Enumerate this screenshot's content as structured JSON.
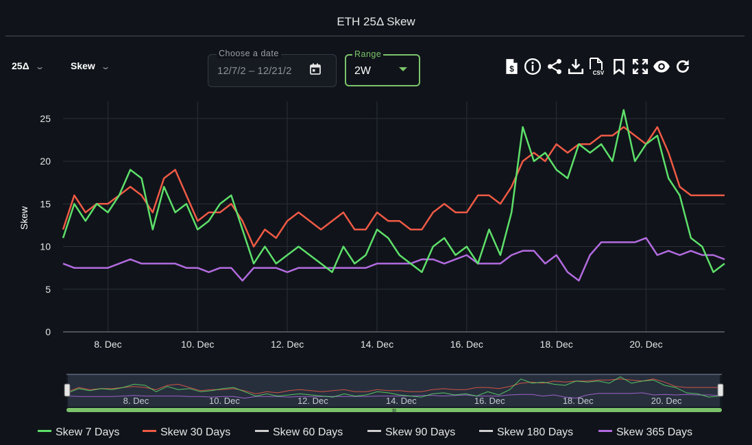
{
  "title": "ETH 25Δ Skew",
  "controls": {
    "delta_select": "25Δ",
    "metric_select": "Skew",
    "date_label": "Choose a date",
    "date_value": "12/7/2  –  12/21/2",
    "range_label": "Range",
    "range_value": "2W"
  },
  "toolbar": [
    {
      "name": "dollar-file-icon"
    },
    {
      "name": "info-icon"
    },
    {
      "name": "share-icon"
    },
    {
      "name": "download-icon"
    },
    {
      "name": "csv-icon",
      "label": "CSV"
    },
    {
      "name": "bookmark-icon"
    },
    {
      "name": "fullscreen-icon"
    },
    {
      "name": "eye-icon"
    },
    {
      "name": "refresh-icon"
    }
  ],
  "colors": {
    "background": "#10141a",
    "grid": "#2a3038",
    "accent": "#7cc46b",
    "skew_7": "#5ee06a",
    "skew_30": "#f05a45",
    "skew_60": "#d0d0d0",
    "skew_90": "#d0d0d0",
    "skew_180": "#d0d0d0",
    "skew_365": "#b36be0"
  },
  "chart_data": {
    "type": "line",
    "title": "ETH 25Δ Skew",
    "xlabel": "",
    "ylabel": "Skew",
    "x_range": [
      "Dec 7, 00:00",
      "Dec 21, 18:00"
    ],
    "x_start_day": 7,
    "x_end_day": 21.75,
    "x_ticks": [
      "8. Dec",
      "10. Dec",
      "12. Dec",
      "14. Dec",
      "16. Dec",
      "18. Dec",
      "20. Dec"
    ],
    "x_tick_days": [
      8,
      10,
      12,
      14,
      16,
      18,
      20
    ],
    "ylim": [
      0,
      27
    ],
    "y_ticks": [
      0,
      5,
      10,
      15,
      20,
      25
    ],
    "grid": true,
    "legend_position": "bottom",
    "x_days": [
      7.0,
      7.25,
      7.5,
      7.75,
      8.0,
      8.25,
      8.5,
      8.75,
      9.0,
      9.25,
      9.5,
      9.75,
      10.0,
      10.25,
      10.5,
      10.75,
      11.0,
      11.25,
      11.5,
      11.75,
      12.0,
      12.25,
      12.5,
      12.75,
      13.0,
      13.25,
      13.5,
      13.75,
      14.0,
      14.25,
      14.5,
      14.75,
      15.0,
      15.25,
      15.5,
      15.75,
      16.0,
      16.25,
      16.5,
      16.75,
      17.0,
      17.25,
      17.5,
      17.75,
      18.0,
      18.25,
      18.5,
      18.75,
      19.0,
      19.25,
      19.5,
      19.75,
      20.0,
      20.25,
      20.5,
      20.75,
      21.0,
      21.25,
      21.5,
      21.75
    ],
    "series": [
      {
        "name": "Skew 7 Days",
        "color": "#5ee06a",
        "visible": true,
        "values": [
          11,
          15,
          13,
          15,
          14,
          16,
          19,
          18,
          12,
          17,
          14,
          15,
          12,
          13,
          15,
          16,
          12,
          8,
          10,
          8,
          9,
          10,
          9,
          8,
          7,
          10,
          8,
          9,
          12,
          11,
          9,
          8,
          7,
          10,
          11,
          9,
          10,
          8,
          12,
          9,
          14,
          24,
          20,
          21,
          19,
          18,
          22,
          21,
          22,
          20,
          26,
          20,
          22,
          23,
          18,
          16,
          11,
          10,
          7,
          8
        ]
      },
      {
        "name": "Skew 30 Days",
        "color": "#f05a45",
        "visible": true,
        "values": [
          12,
          16,
          14,
          15,
          15,
          16,
          17,
          16,
          14,
          18,
          19,
          16,
          13,
          14,
          14,
          15,
          13,
          10,
          12,
          11,
          13,
          14,
          13,
          12,
          13,
          14,
          12,
          12,
          14,
          13,
          13,
          12,
          12,
          14,
          15,
          14,
          14,
          16,
          16,
          15,
          17,
          20,
          21,
          20,
          22,
          21,
          22,
          22,
          23,
          23,
          24,
          23,
          22,
          24,
          21,
          17,
          16,
          16,
          16,
          16
        ]
      },
      {
        "name": "Skew 60 Days",
        "color": "#d0d0d0",
        "visible": false,
        "values": []
      },
      {
        "name": "Skew 90 Days",
        "color": "#d0d0d0",
        "visible": false,
        "values": []
      },
      {
        "name": "Skew 180 Days",
        "color": "#d0d0d0",
        "visible": false,
        "values": []
      },
      {
        "name": "Skew 365 Days",
        "color": "#b36be0",
        "visible": true,
        "values": [
          8,
          7.5,
          7.5,
          7.5,
          7.5,
          8,
          8.5,
          8,
          8,
          8,
          8,
          7.5,
          7.5,
          7,
          7.5,
          7.5,
          6,
          7.5,
          7.5,
          7.5,
          7,
          7.5,
          7.5,
          7.5,
          7.5,
          7.5,
          7.5,
          7.5,
          8,
          8,
          8,
          8,
          8.5,
          8.5,
          8,
          8.5,
          9,
          8,
          8,
          8,
          9,
          9.5,
          9.5,
          8,
          9,
          7,
          6,
          9,
          10.5,
          10.5,
          10.5,
          10.5,
          11,
          9,
          9.5,
          9,
          9.5,
          9,
          9,
          8.5
        ]
      }
    ]
  },
  "navigator": {
    "x_ticks": [
      "8. Dec",
      "10. Dec",
      "12. Dec",
      "14. Dec",
      "16. Dec",
      "18. Dec",
      "20. Dec"
    ],
    "grip_label": "III"
  }
}
